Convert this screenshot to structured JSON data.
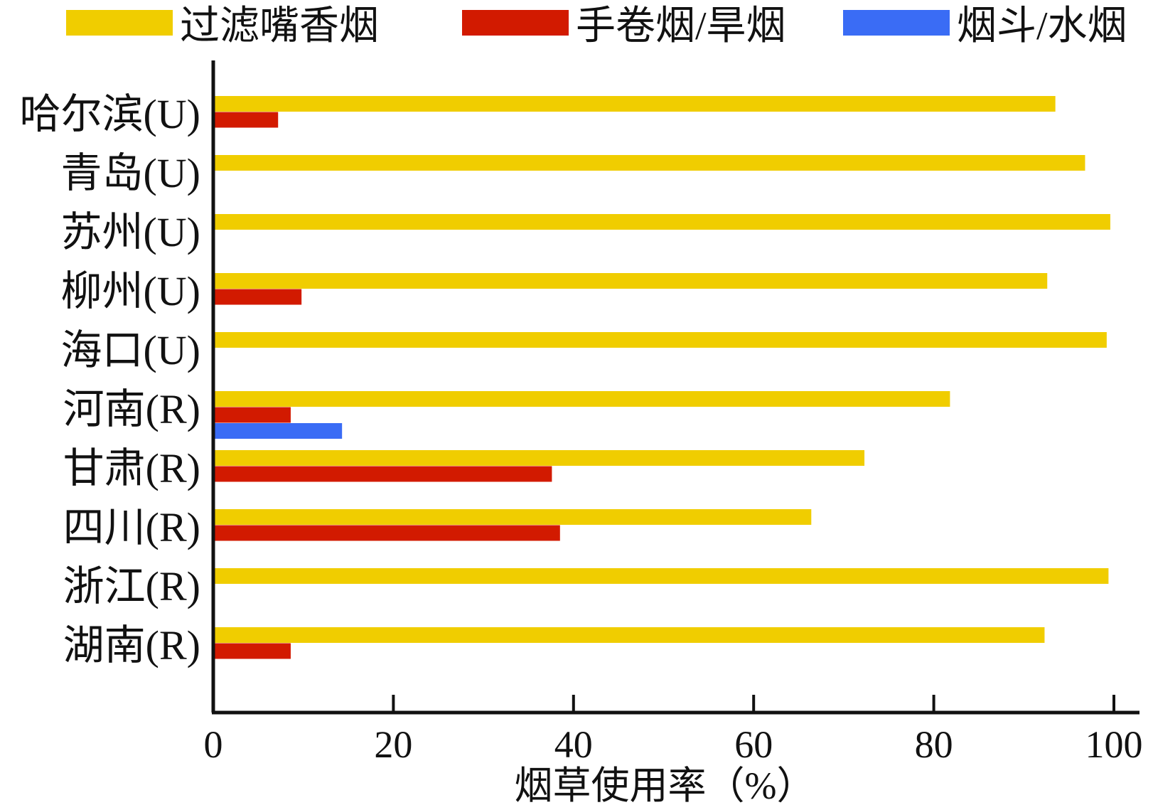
{
  "chart_data": {
    "type": "bar",
    "orientation": "horizontal",
    "categories": [
      "哈尔滨(U)",
      "青岛(U)",
      "苏州(U)",
      "柳州(U)",
      "海口(U)",
      "河南(R)",
      "甘肃(R)",
      "四川(R)",
      "浙江(R)",
      "湖南(R)"
    ],
    "series": [
      {
        "name": "过滤嘴香烟",
        "color": "#f0cd00",
        "values": [
          93.5,
          96.8,
          99.6,
          92.6,
          99.2,
          81.8,
          72.3,
          66.4,
          99.4,
          92.3
        ]
      },
      {
        "name": "手卷烟/旱烟",
        "color": "#d21a00",
        "values": [
          7.2,
          0,
          0,
          9.8,
          0,
          8.6,
          37.6,
          38.5,
          0,
          8.6
        ]
      },
      {
        "name": "烟斗/水烟",
        "color": "#3a6cf5",
        "values": [
          0,
          0,
          0,
          0,
          0,
          14.3,
          0,
          0,
          0,
          0
        ]
      }
    ],
    "xlim": [
      0,
      100
    ],
    "xticks": [
      "0",
      "20",
      "40",
      "60",
      "80",
      "100"
    ],
    "xlabel": "烟草使用率（%）",
    "ylabel": "",
    "title": "",
    "legend_position": "top",
    "grid": false
  }
}
